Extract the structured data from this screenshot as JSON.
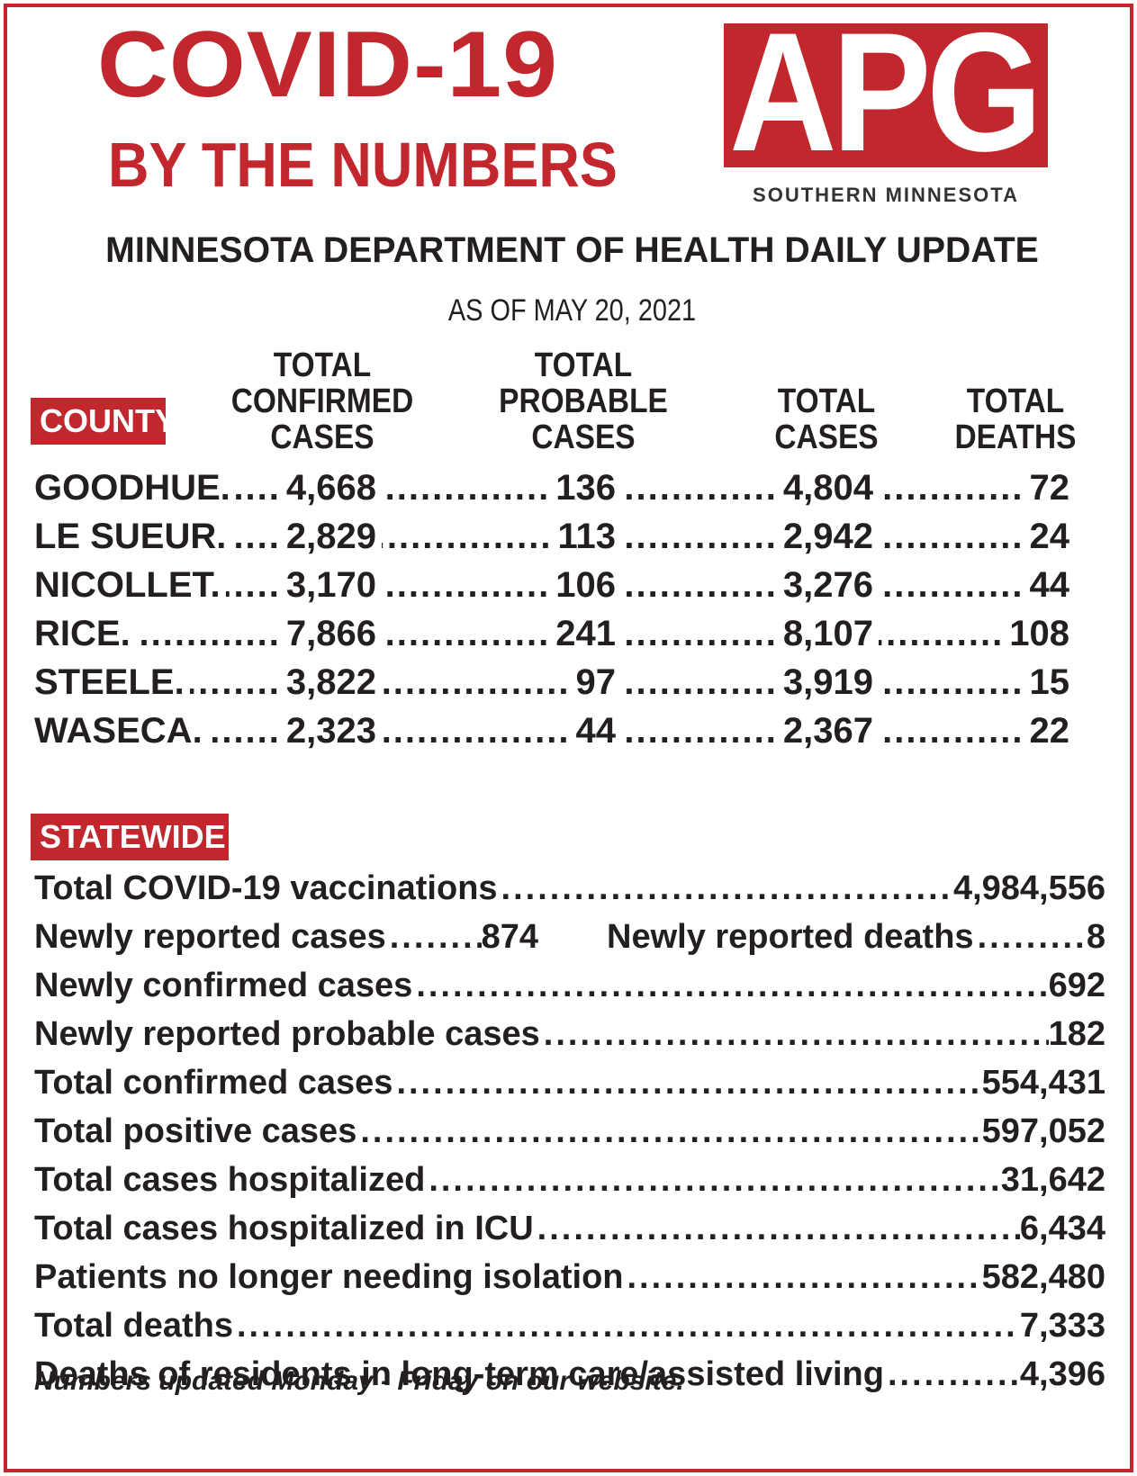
{
  "header": {
    "title_line1": "COVID-19",
    "title_line2": "BY THE NUMBERS",
    "logo_letters": "APG",
    "logo_sub": "SOUTHERN MINNESOTA",
    "department": "MINNESOTA DEPARTMENT OF HEALTH DAILY UPDATE",
    "as_of": "AS OF MAY 20, 2021",
    "brand_color": "#c1272d"
  },
  "county_table": {
    "badge": "COUNTY",
    "columns": [
      [
        "TOTAL",
        "CONFIRMED",
        "CASES"
      ],
      [
        "TOTAL",
        "PROBABLE",
        "CASES"
      ],
      [
        "TOTAL",
        "CASES"
      ],
      [
        "TOTAL",
        "DEATHS"
      ]
    ],
    "rows": [
      {
        "name": "GOODHUE.",
        "confirmed": "4,668",
        "probable": "136",
        "total": "4,804",
        "deaths": "72"
      },
      {
        "name": "LE SUEUR.",
        "confirmed": "2,829",
        "probable": "113",
        "total": "2,942",
        "deaths": "24"
      },
      {
        "name": "NICOLLET.",
        "confirmed": "3,170",
        "probable": "106",
        "total": "3,276",
        "deaths": "44"
      },
      {
        "name": "RICE.",
        "confirmed": "7,866",
        "probable": "241",
        "total": "8,107",
        "deaths": "108"
      },
      {
        "name": "STEELE.",
        "confirmed": "3,822",
        "probable": "97",
        "total": "3,919",
        "deaths": "15"
      },
      {
        "name": "WASECA.",
        "confirmed": "2,323",
        "probable": "44",
        "total": "2,367",
        "deaths": "22"
      }
    ]
  },
  "statewide": {
    "badge": "STATEWIDE",
    "vaccinations": {
      "label": "Total COVID-19 vaccinations",
      "value": "4,984,556"
    },
    "new_cases": {
      "label": "Newly reported cases",
      "value": "874"
    },
    "new_deaths": {
      "label": "Newly reported deaths",
      "value": "8"
    },
    "rows": [
      {
        "label": "Newly confirmed cases",
        "value": "692"
      },
      {
        "label": "Newly reported probable cases",
        "value": "182"
      },
      {
        "label": "Total confirmed cases",
        "value": "554,431"
      },
      {
        "label": "Total positive cases",
        "value": "597,052"
      },
      {
        "label": "Total cases hospitalized",
        "value": "31,642"
      },
      {
        "label": "Total cases hospitalized in ICU",
        "value": "6,434"
      },
      {
        "label": "Patients no longer needing isolation",
        "value": "582,480"
      },
      {
        "label": "Total deaths",
        "value": "7,333"
      },
      {
        "label": "Deaths of residents in long-term care/assisted living",
        "value": "4,396"
      }
    ]
  },
  "footer": "Numbers updated Monday - Friday on our website."
}
